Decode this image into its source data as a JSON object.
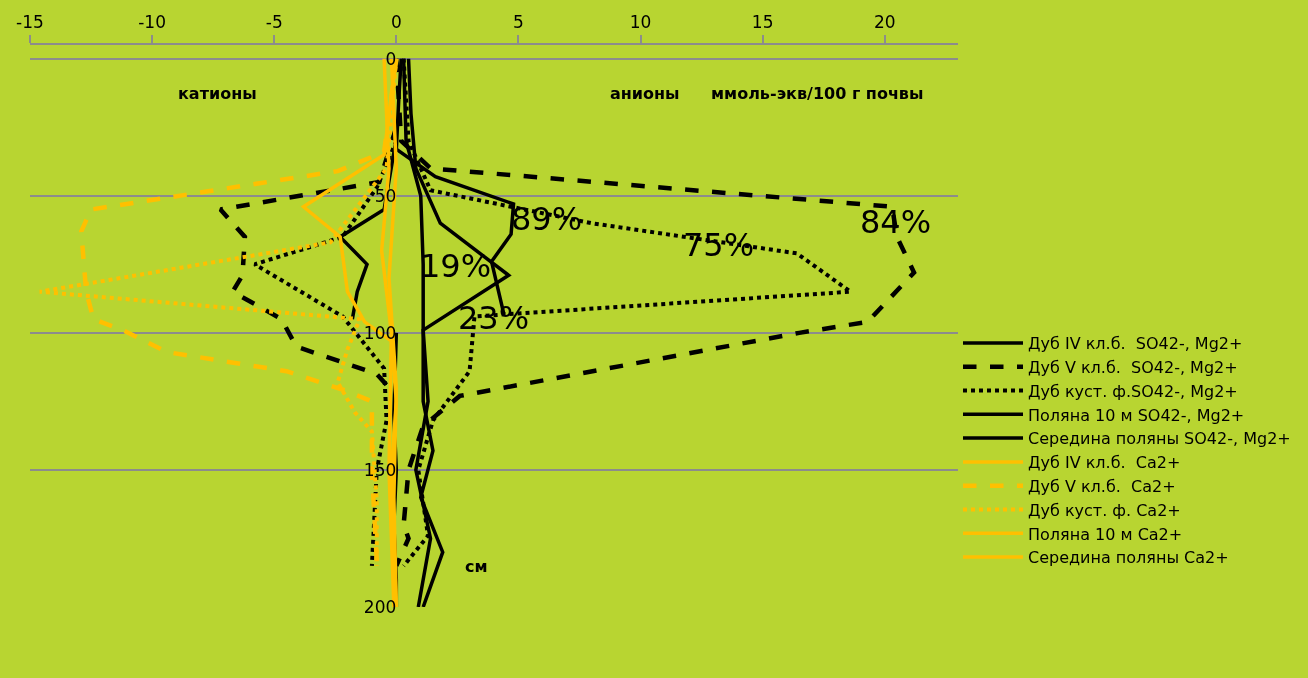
{
  "chart_data": {
    "type": "line",
    "xlabel": "ммоль-экв/100 г почвы",
    "ylabel": "см",
    "xlim": [
      -15,
      23
    ],
    "xticks": [
      -15,
      -10,
      -5,
      0,
      5,
      10,
      15,
      20
    ],
    "ylim": [
      200,
      -5
    ],
    "yticks": [
      0,
      50,
      100,
      150,
      200
    ],
    "grid": "y",
    "legend": "right",
    "marker": "none",
    "annotations": [
      "катионы",
      "анионы",
      "89%",
      "84%",
      "75%",
      "19%",
      "23%"
    ],
    "series": [
      {
        "name": "Дуб IV кл.б.  SO42-, Mg2+",
        "color": "#000000",
        "line_style": "solid",
        "x": [
          0.2,
          0.1,
          0,
          1.6,
          4.8,
          4.7,
          3.9,
          4.4,
          null,
          0,
          -0.5,
          -2.3,
          -1.2,
          -1.6,
          -1.8,
          null,
          0,
          -0.1,
          0,
          -0.1,
          0,
          0
        ],
        "values": [
          0,
          15,
          33,
          43,
          53,
          64,
          74,
          93,
          null,
          29,
          55,
          65,
          75,
          85,
          95,
          null,
          100,
          130,
          150,
          170,
          190,
          200
        ]
      },
      {
        "name": "Дуб V кл.б.  SO42-, Mg2+",
        "color": "#000000",
        "line_style": "dashed",
        "x": [
          0,
          0.2,
          1.4,
          20.3,
          20.5,
          21.2,
          19.3,
          16.5,
          2.6,
          1.1,
          0.5,
          0.3,
          0.5,
          0,
          null,
          0,
          -0.7,
          -7.2,
          -6.2,
          -6.3,
          -6.7,
          -4.7,
          -4.1,
          -0.8,
          -0.2
        ],
        "values": [
          0,
          30,
          40,
          54,
          65,
          78,
          96,
          100,
          123,
          134,
          150,
          170,
          175,
          185,
          null,
          25,
          45,
          55,
          65,
          79,
          85,
          95,
          105,
          115,
          121
        ]
      },
      {
        "name": "Дуб куст. ф.SO42-, Mg2+",
        "color": "#000000",
        "line_style": "dotted",
        "x": [
          0.3,
          0.5,
          1.4,
          8,
          16.4,
          18.6,
          3.2,
          3,
          1.5,
          0.9,
          1.3,
          0.3,
          null,
          0,
          -0.8,
          -2.2,
          -5.8,
          -2.2,
          -0.5,
          -0.4,
          -0.8,
          -1
        ],
        "values": [
          0,
          30,
          48,
          60,
          71,
          85,
          94,
          114,
          132,
          150,
          174,
          185,
          null,
          30,
          47,
          65,
          75,
          94,
          113,
          132,
          150,
          185
        ]
      },
      {
        "name": "Поляна 10 м SO42-, Mg2+",
        "color": "#000000",
        "line_style": "solid",
        "x": [
          0.5,
          0.6,
          0.8,
          1.8,
          4.6,
          1.1,
          1.1,
          1.5,
          1.0,
          1.9,
          1.1
        ],
        "values": [
          0,
          20,
          40,
          60,
          79,
          99,
          125,
          143,
          160,
          180,
          200
        ]
      },
      {
        "name": "Середина поляны SO42-, Mg2+",
        "color": "#000000",
        "line_style": "solid",
        "x": [
          0.3,
          0.4,
          1.0,
          1.1,
          1.1,
          1.3,
          0.8,
          1.4,
          0.9
        ],
        "values": [
          0,
          30,
          50,
          75,
          99,
          125,
          150,
          175,
          200
        ]
      },
      {
        "name": "Дуб IV кл.б.  Ca2+",
        "color": "#ffc000",
        "line_style": "solid",
        "x": [
          0,
          -0.3,
          -0.5,
          -3.8,
          -2.3,
          -2,
          -1.3,
          -0.2,
          0,
          -0.2,
          0
        ],
        "values": [
          0,
          20,
          35,
          54,
          65,
          85,
          96,
          103,
          125,
          150,
          200
        ]
      },
      {
        "name": "Дуб V кл.б.  Ca2+",
        "color": "#ffc000",
        "line_style": "dashed",
        "x": [
          0,
          -0.5,
          -2.4,
          -12.5,
          -12.9,
          -12.7,
          -12.4,
          -11.2,
          -9.4,
          -4.5,
          -2.1,
          -1,
          -1,
          -0.8
        ],
        "values": [
          0,
          34,
          41,
          55,
          63,
          85,
          95,
          99,
          107,
          114,
          121,
          125,
          150,
          183
        ]
      },
      {
        "name": "Дуб куст. ф. Ca2+",
        "color": "#ffc000",
        "line_style": "dotted",
        "x": [
          0,
          -0.4,
          -2.7,
          -14.6,
          -1.5,
          -2,
          -2.4,
          -1.7,
          -1,
          -0.8,
          -0.8
        ],
        "values": [
          0,
          40,
          67,
          85,
          95,
          106,
          118,
          129,
          136,
          161,
          185
        ]
      },
      {
        "name": "Поляна 10 м Ca2+",
        "color": "#ffc000",
        "line_style": "solid",
        "x": [
          -0.5,
          -0.3,
          -0.6,
          -0.2,
          -0.3,
          -0.1
        ],
        "values": [
          0,
          40,
          70,
          100,
          150,
          200
        ]
      },
      {
        "name": "Середина поляны Ca2+",
        "color": "#ffc000",
        "line_style": "solid",
        "x": [
          -0.2,
          0,
          -0.3,
          0,
          -0.1,
          0
        ],
        "values": [
          0,
          40,
          80,
          120,
          160,
          200
        ]
      }
    ]
  }
}
